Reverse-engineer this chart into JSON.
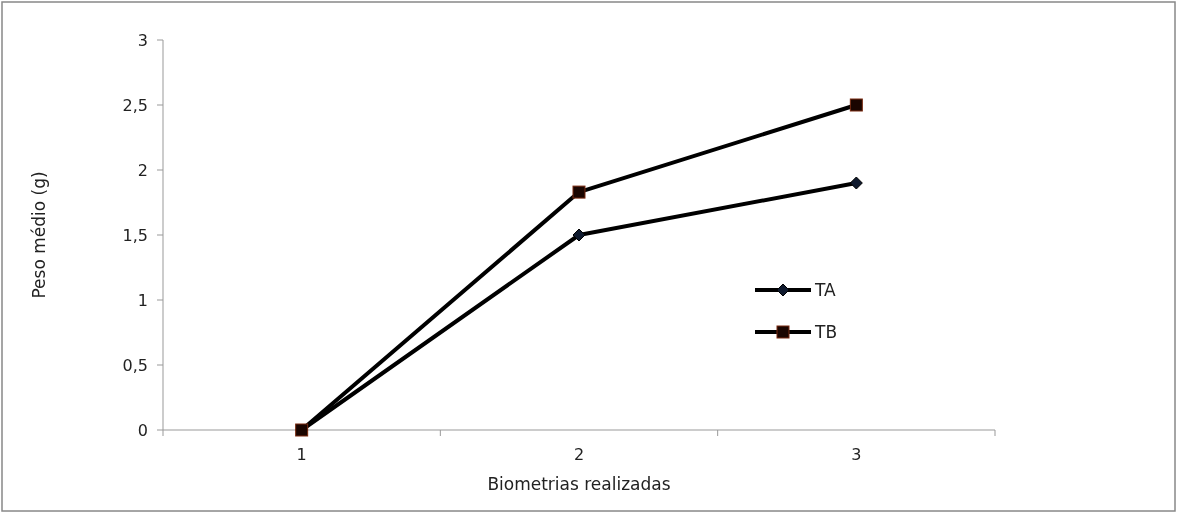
{
  "chart_data": {
    "type": "line",
    "xlabel": "Biometrias realizadas",
    "ylabel": "Peso médio (g)",
    "categories": [
      "1",
      "2",
      "3"
    ],
    "series": [
      {
        "name": "TA",
        "color": "#000000",
        "marker": "diamond",
        "values": [
          0,
          1.5,
          1.9
        ]
      },
      {
        "name": "TB",
        "color": "#000000",
        "marker": "square",
        "values": [
          0,
          1.83,
          2.5
        ]
      }
    ],
    "ylim": [
      0,
      3
    ],
    "yticks": [
      {
        "value": 0,
        "label": "0"
      },
      {
        "value": 0.5,
        "label": "0,5"
      },
      {
        "value": 1,
        "label": "1"
      },
      {
        "value": 1.5,
        "label": "1,5"
      },
      {
        "value": 2,
        "label": "2"
      },
      {
        "value": 2.5,
        "label": "2,5"
      },
      {
        "value": 3,
        "label": "3"
      }
    ],
    "grid": false,
    "legend": "right",
    "line_style": "solid"
  }
}
